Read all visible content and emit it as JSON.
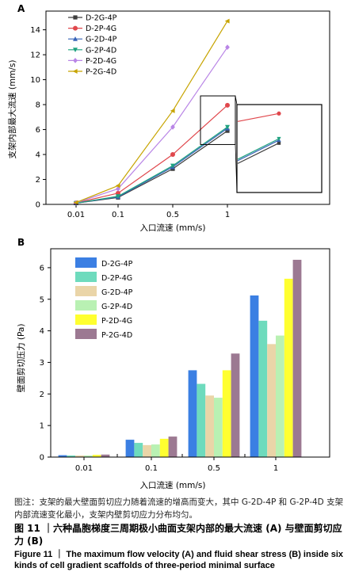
{
  "colors": {
    "D-2G-4P": "#3e3e3e",
    "D-2P-4G": "#e0474c",
    "G-2D-4P": "#3763b8",
    "G-2P-4D": "#1fa27f",
    "P-2D-4G": "#b985e6",
    "P-2G-4D": "#c7a400"
  },
  "bar_colors": [
    "#3b7fe3",
    "#6edbbd",
    "#ead5a8",
    "#b9f1b3",
    "#ffff30",
    "#9c7992"
  ],
  "chart_data": [
    {
      "panel": "A",
      "type": "line",
      "ylabel": "支架内部最大流速 (mm/s)",
      "xlabel": "入口流速 (mm/s)",
      "categories": [
        "0.01",
        "0.1",
        "0.5",
        "1"
      ],
      "ylim": [
        0,
        15.5
      ],
      "yticks": [
        0,
        2,
        4,
        6,
        8,
        10,
        12,
        14
      ],
      "legend_position": "top-left",
      "series": [
        {
          "name": "D-2G-4P",
          "marker": "square",
          "values": [
            0.1,
            0.55,
            2.85,
            5.9
          ]
        },
        {
          "name": "D-2P-4G",
          "marker": "circle",
          "values": [
            0.12,
            0.9,
            4.0,
            7.95
          ]
        },
        {
          "name": "G-2D-4P",
          "marker": "triangle-up",
          "values": [
            0.1,
            0.6,
            3.0,
            6.1
          ]
        },
        {
          "name": "G-2P-4D",
          "marker": "triangle-down",
          "values": [
            0.1,
            0.65,
            3.1,
            6.2
          ]
        },
        {
          "name": "P-2D-4G",
          "marker": "diamond",
          "values": [
            0.13,
            1.25,
            6.2,
            12.6
          ]
        },
        {
          "name": "P-2G-4D",
          "marker": "triangle-left",
          "values": [
            0.15,
            1.5,
            7.5,
            14.7
          ]
        }
      ],
      "inset": {
        "zoom_of": "region around x=1, y≈6"
      }
    },
    {
      "panel": "B",
      "type": "bar",
      "ylabel": "壁面剪切压力 (Pa)",
      "xlabel": "入口流速 (mm/s)",
      "categories": [
        "0.01",
        "0.1",
        "0.5",
        "1"
      ],
      "ylim": [
        0,
        6.6
      ],
      "yticks": [
        0,
        1,
        2,
        3,
        4,
        5,
        6
      ],
      "legend_position": "top-left",
      "series": [
        {
          "name": "D-2G-4P",
          "values": [
            0.06,
            0.55,
            2.75,
            5.12
          ]
        },
        {
          "name": "D-2P-4G",
          "values": [
            0.05,
            0.45,
            2.32,
            4.32
          ]
        },
        {
          "name": "G-2D-4P",
          "values": [
            0.05,
            0.38,
            1.95,
            3.58
          ]
        },
        {
          "name": "G-2P-4D",
          "values": [
            0.05,
            0.4,
            1.88,
            3.85
          ]
        },
        {
          "name": "P-2D-4G",
          "values": [
            0.07,
            0.58,
            2.75,
            5.65
          ]
        },
        {
          "name": "P-2G-4D",
          "values": [
            0.08,
            0.65,
            3.28,
            6.25
          ]
        }
      ]
    }
  ],
  "caption": {
    "note": "图注：支架的最大壁面剪切应力随着流速的增高而变大，其中 G-2D-4P 和 G-2P-4D 支架内部流速变化最小，支架内壁剪切应力分布均匀。",
    "title_cn": "图 11 ｜六种晶胞梯度三周期极小曲面支架内部的最大流速 (A) 与壁面剪切应力 (B)",
    "title_en": "Figure 11 ｜ The maximum flow velocity (A) and fluid shear stress (B) inside six kinds of cell gradient scaffolds of three-period minimal surface"
  }
}
